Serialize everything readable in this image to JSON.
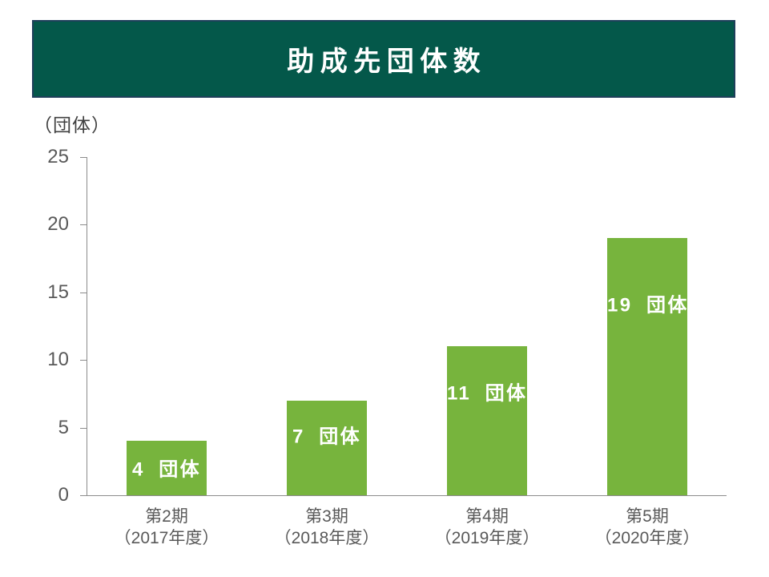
{
  "title": "助成先団体数",
  "colors": {
    "header_bg": "#04584A",
    "header_border": "#1E3F5A",
    "bar": "#77B43D",
    "axis_line": "#8C8C8C",
    "tick_label": "#595959",
    "category_label": "#595959",
    "unit_label": "#404040",
    "value_label": "#FFFFFF",
    "background": "#FFFFFF"
  },
  "chart_data": {
    "type": "bar",
    "title": "助成先団体数",
    "unit_label": "（団体）",
    "categories": [
      "第2期",
      "第3期",
      "第4期",
      "第5期"
    ],
    "category_sublabels": [
      "（2017年度）",
      "（2018年度）",
      "（2019年度）",
      "（2020年度）"
    ],
    "values": [
      4,
      7,
      11,
      19
    ],
    "value_labels": [
      "4 団体",
      "7 団体",
      "11 団体",
      "19 団体"
    ],
    "yticks": [
      0,
      5,
      10,
      15,
      20,
      25
    ],
    "ylim": [
      0,
      25
    ],
    "xlabel": "",
    "ylabel": "（団体）",
    "grid": false,
    "legend": false
  }
}
